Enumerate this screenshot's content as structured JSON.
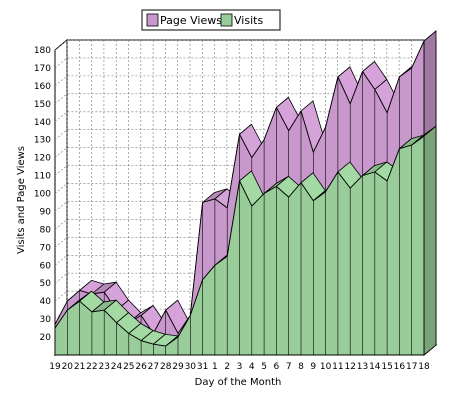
{
  "chart_data": {
    "type": "area",
    "x": [
      "19",
      "20",
      "21",
      "22",
      "23",
      "24",
      "25",
      "26",
      "27",
      "28",
      "29",
      "30",
      "31",
      "1",
      "2",
      "3",
      "4",
      "5",
      "6",
      "7",
      "8",
      "9",
      "10",
      "11",
      "12",
      "13",
      "14",
      "15",
      "16",
      "17",
      "18"
    ],
    "series": [
      {
        "name": "Page Views",
        "color": "#c897cc",
        "values": [
          27,
          40,
          46,
          44,
          45,
          35,
          28,
          32,
          22,
          35,
          22,
          32,
          95,
          97,
          92,
          133,
          120,
          130,
          148,
          135,
          146,
          123,
          137,
          165,
          150,
          168,
          158,
          145,
          165,
          170,
          185
        ]
      },
      {
        "name": "Visits",
        "color": "#98cc98",
        "values": [
          25,
          35,
          40,
          34,
          35,
          28,
          22,
          18,
          16,
          15,
          20,
          32,
          52,
          60,
          65,
          107,
          93,
          100,
          104,
          98,
          106,
          96,
          101,
          112,
          103,
          110,
          112,
          107,
          125,
          127,
          132
        ]
      }
    ],
    "xlabel": "Day of the Month",
    "ylabel": "Visits and Page Views",
    "ylim": [
      10,
      180
    ],
    "yticks": [
      20,
      30,
      40,
      50,
      60,
      70,
      80,
      90,
      100,
      110,
      120,
      130,
      140,
      150,
      160,
      170,
      180
    ],
    "grid": true,
    "legend": "top-center",
    "style": "3d-area"
  }
}
